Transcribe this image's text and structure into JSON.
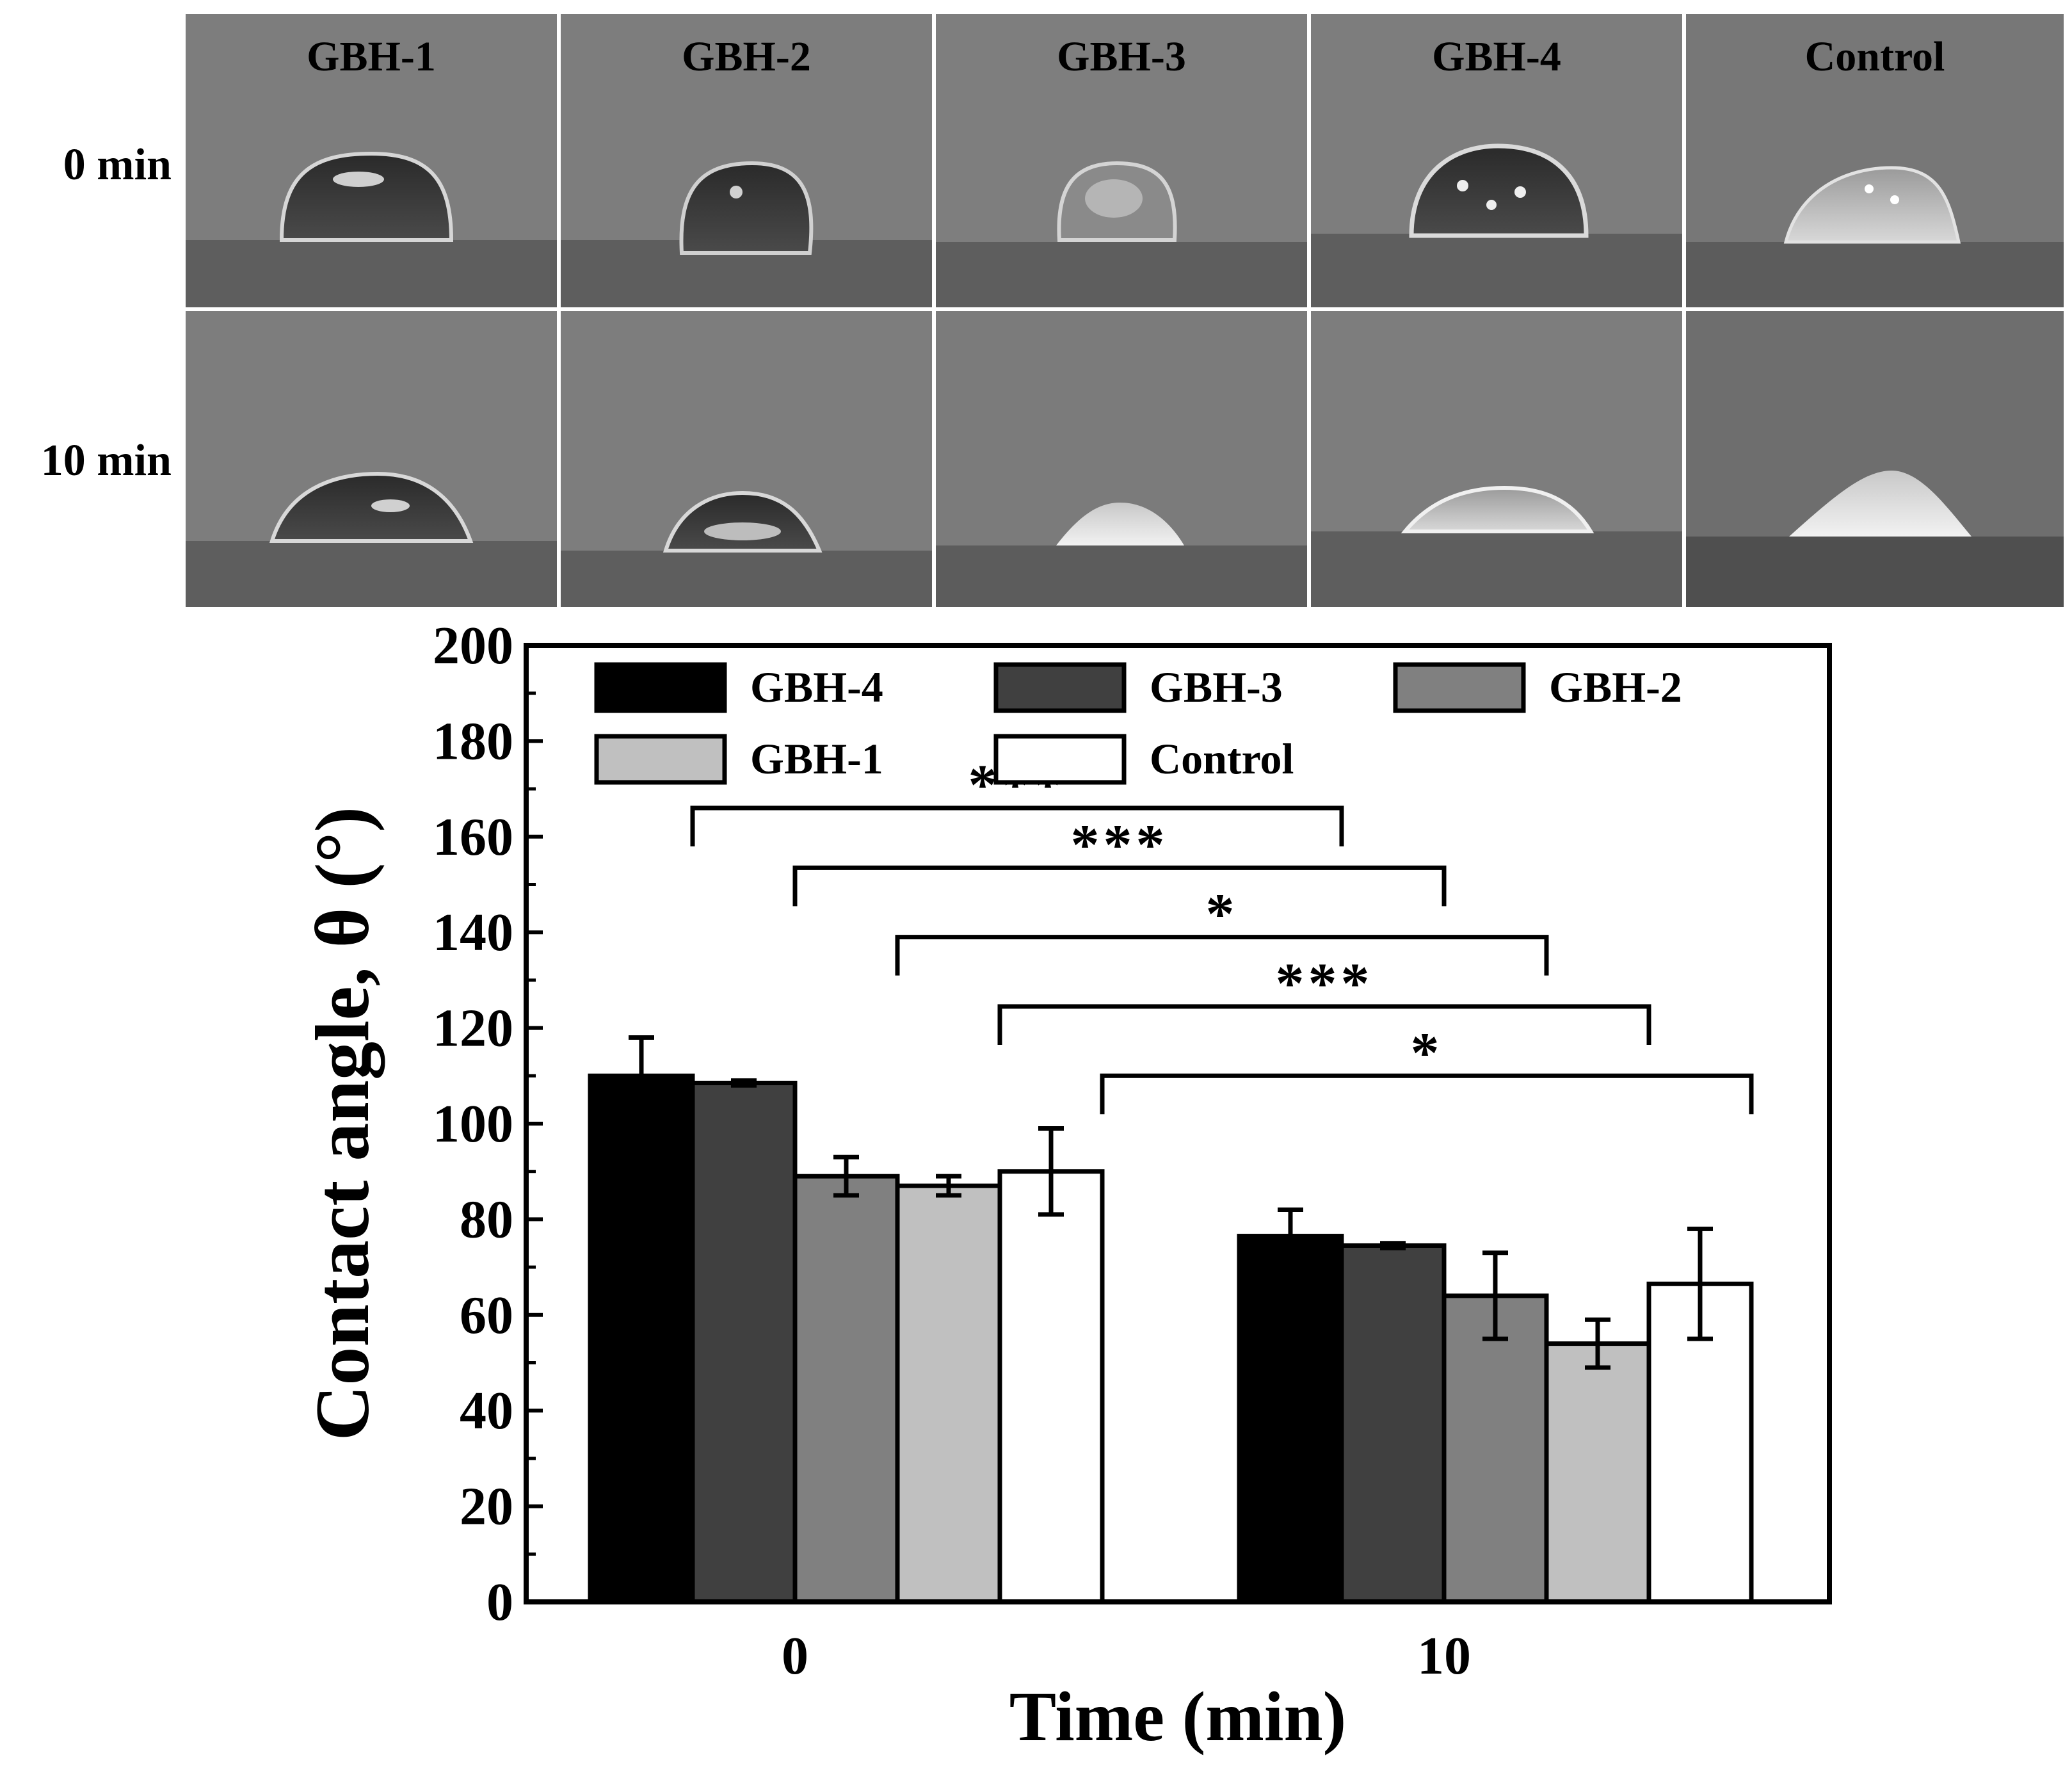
{
  "photo_panel": {
    "columns": [
      "GBH-1",
      "GBH-2",
      "GBH-3",
      "GBH-4",
      "Control"
    ],
    "rows": [
      "0 min",
      "10 min"
    ]
  },
  "chart_data": {
    "type": "bar",
    "title": "",
    "xlabel": "Time (min)",
    "ylabel": "Contact angle, θ (°)",
    "ylim": [
      0,
      200
    ],
    "yticks": [
      0,
      20,
      40,
      60,
      80,
      100,
      120,
      140,
      160,
      180,
      200
    ],
    "categories": [
      "0",
      "10"
    ],
    "series": [
      {
        "name": "GBH-4",
        "color": "#000000",
        "values": [
          110,
          76.5
        ],
        "errors": [
          8,
          5.5
        ]
      },
      {
        "name": "GBH-3",
        "color": "#404040",
        "values": [
          108.5,
          74.5
        ],
        "errors": [
          0.5,
          0.5
        ]
      },
      {
        "name": "GBH-2",
        "color": "#808080",
        "values": [
          89,
          64
        ],
        "errors": [
          4,
          9
        ]
      },
      {
        "name": "GBH-1",
        "color": "#c0c0c0",
        "values": [
          87,
          54
        ],
        "errors": [
          2,
          5
        ]
      },
      {
        "name": "Control",
        "color": "#ffffff",
        "values": [
          90,
          66.5
        ],
        "errors": [
          9,
          11.5
        ]
      }
    ],
    "significance": [
      {
        "series": "GBH-4",
        "label": "***",
        "level": 166
      },
      {
        "series": "GBH-3",
        "label": "***",
        "level": 153.5
      },
      {
        "series": "GBH-2",
        "label": "*",
        "level": 139
      },
      {
        "series": "GBH-1",
        "label": "***",
        "level": 124.5
      },
      {
        "series": "Control",
        "label": "*",
        "level": 110
      }
    ],
    "legend_position": "top-inside"
  }
}
